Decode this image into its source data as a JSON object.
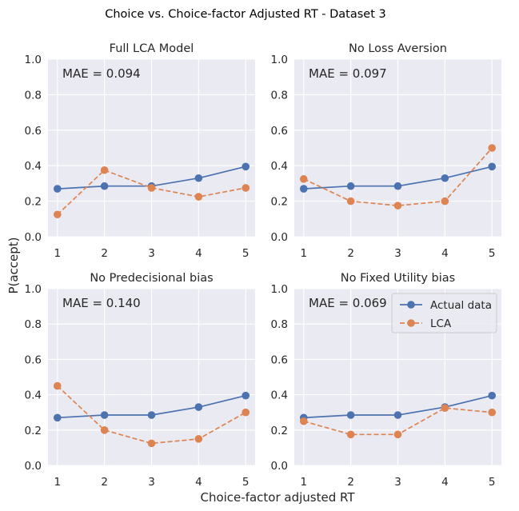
{
  "figure": {
    "suptitle": "Choice vs. Choice-factor Adjusted RT - Dataset 3",
    "xlabel": "Choice-factor adjusted RT",
    "ylabel": "P(accept)"
  },
  "colors": {
    "actual": "#4C72B0",
    "lca": "#DD8452",
    "panel_bg": "#EAEAF2",
    "grid": "#ffffff"
  },
  "legend": {
    "location": "upper-right of bottom-right panel",
    "entries": [
      "Actual data",
      "LCA"
    ]
  },
  "chart_data": [
    {
      "type": "line",
      "title": "Full LCA Model",
      "annotation": "MAE = 0.094",
      "x": [
        1,
        2,
        3,
        4,
        5
      ],
      "ylim": [
        0,
        1
      ],
      "yticks": [
        "0.0",
        "0.2",
        "0.4",
        "0.6",
        "0.8",
        "1.0"
      ],
      "xticks": [
        "1",
        "2",
        "3",
        "4",
        "5"
      ],
      "grid": true,
      "series": [
        {
          "name": "Actual data",
          "style": "solid",
          "values": [
            0.27,
            0.285,
            0.285,
            0.33,
            0.395
          ]
        },
        {
          "name": "LCA",
          "style": "dashed",
          "values": [
            0.125,
            0.375,
            0.275,
            0.225,
            0.275
          ]
        }
      ]
    },
    {
      "type": "line",
      "title": "No Loss Aversion",
      "annotation": "MAE = 0.097",
      "x": [
        1,
        2,
        3,
        4,
        5
      ],
      "ylim": [
        0,
        1
      ],
      "yticks": [
        "0.0",
        "0.2",
        "0.4",
        "0.6",
        "0.8",
        "1.0"
      ],
      "xticks": [
        "1",
        "2",
        "3",
        "4",
        "5"
      ],
      "grid": true,
      "series": [
        {
          "name": "Actual data",
          "style": "solid",
          "values": [
            0.27,
            0.285,
            0.285,
            0.33,
            0.395
          ]
        },
        {
          "name": "LCA",
          "style": "dashed",
          "values": [
            0.325,
            0.2,
            0.175,
            0.2,
            0.5
          ]
        }
      ]
    },
    {
      "type": "line",
      "title": "No Predecisional bias",
      "annotation": "MAE = 0.140",
      "x": [
        1,
        2,
        3,
        4,
        5
      ],
      "ylim": [
        0,
        1
      ],
      "yticks": [
        "0.0",
        "0.2",
        "0.4",
        "0.6",
        "0.8",
        "1.0"
      ],
      "xticks": [
        "1",
        "2",
        "3",
        "4",
        "5"
      ],
      "grid": true,
      "series": [
        {
          "name": "Actual data",
          "style": "solid",
          "values": [
            0.27,
            0.285,
            0.285,
            0.33,
            0.395
          ]
        },
        {
          "name": "LCA",
          "style": "dashed",
          "values": [
            0.45,
            0.2,
            0.125,
            0.15,
            0.3
          ]
        }
      ]
    },
    {
      "type": "line",
      "title": "No Fixed Utility bias",
      "annotation": "MAE = 0.069",
      "x": [
        1,
        2,
        3,
        4,
        5
      ],
      "ylim": [
        0,
        1
      ],
      "yticks": [
        "0.0",
        "0.2",
        "0.4",
        "0.6",
        "0.8",
        "1.0"
      ],
      "xticks": [
        "1",
        "2",
        "3",
        "4",
        "5"
      ],
      "grid": true,
      "series": [
        {
          "name": "Actual data",
          "style": "solid",
          "values": [
            0.27,
            0.285,
            0.285,
            0.33,
            0.395
          ]
        },
        {
          "name": "LCA",
          "style": "dashed",
          "values": [
            0.25,
            0.175,
            0.175,
            0.325,
            0.3
          ]
        }
      ]
    }
  ]
}
